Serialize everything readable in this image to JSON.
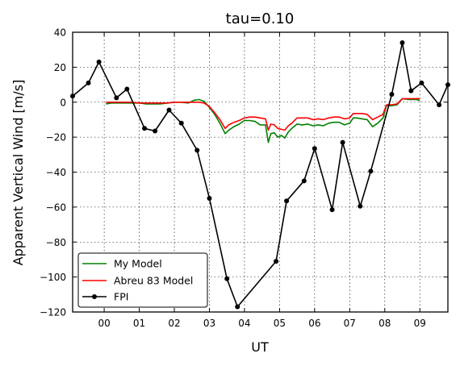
{
  "chart_data": {
    "type": "line",
    "title": "tau=0.10",
    "xlabel": "UT",
    "ylabel": "Apparent Vertical Wind [m/s]",
    "xlim": [
      -0.9,
      9.8
    ],
    "ylim": [
      -120,
      40
    ],
    "xticks": [
      0,
      1,
      2,
      3,
      4,
      5,
      6,
      7,
      8,
      9
    ],
    "xtick_labels": [
      "00",
      "01",
      "02",
      "03",
      "04",
      "05",
      "06",
      "07",
      "08",
      "09"
    ],
    "yticks": [
      -120,
      -100,
      -80,
      -60,
      -40,
      -20,
      0,
      20,
      40
    ],
    "ytick_labels": [
      "−120",
      "−100",
      "−80",
      "−60",
      "−40",
      "−20",
      "0",
      "20",
      "40"
    ],
    "grid": true,
    "legend_position": "lower-left",
    "series": [
      {
        "name": "My Model",
        "color": "#008000",
        "marker": "none",
        "x": [
          0.05,
          0.2,
          0.4,
          0.6,
          0.8,
          1.0,
          1.2,
          1.4,
          1.6,
          1.8,
          2.0,
          2.2,
          2.4,
          2.55,
          2.7,
          2.85,
          3.0,
          3.15,
          3.3,
          3.45,
          3.55,
          3.7,
          3.85,
          4.0,
          4.15,
          4.3,
          4.45,
          4.6,
          4.68,
          4.75,
          4.85,
          4.95,
          5.05,
          5.15,
          5.25,
          5.35,
          5.5,
          5.65,
          5.8,
          5.95,
          6.1,
          6.25,
          6.4,
          6.55,
          6.7,
          6.85,
          7.0,
          7.1,
          7.2,
          7.35,
          7.5,
          7.65,
          7.8,
          7.95,
          8.05,
          8.2,
          8.35,
          8.5,
          8.7,
          8.9,
          9.0
        ],
        "y": [
          -1,
          -0.5,
          -0.5,
          -0.5,
          -0.5,
          -0.5,
          -1,
          -1,
          -1,
          -0.5,
          0,
          0,
          -0.5,
          1,
          1.5,
          0.5,
          -3,
          -7,
          -12,
          -18,
          -16,
          -14,
          -12.5,
          -10.5,
          -10.5,
          -11,
          -13,
          -13,
          -23,
          -18,
          -17.5,
          -20,
          -19,
          -20.5,
          -17,
          -15,
          -12.5,
          -13,
          -12.5,
          -13.5,
          -13,
          -13.5,
          -12,
          -11.5,
          -11.5,
          -13,
          -12,
          -9,
          -9,
          -9.5,
          -10,
          -14,
          -12,
          -9,
          -2,
          -2,
          -1.5,
          2,
          1.5,
          1.5,
          1
        ]
      },
      {
        "name": "Abreu 83 Model",
        "color": "#ff0000",
        "marker": "none",
        "x": [
          0.05,
          0.2,
          0.4,
          0.6,
          0.8,
          1.0,
          1.2,
          1.4,
          1.6,
          1.8,
          2.0,
          2.2,
          2.4,
          2.55,
          2.7,
          2.85,
          3.0,
          3.15,
          3.3,
          3.45,
          3.55,
          3.7,
          3.85,
          4.0,
          4.15,
          4.3,
          4.45,
          4.6,
          4.68,
          4.75,
          4.85,
          4.95,
          5.05,
          5.15,
          5.25,
          5.35,
          5.5,
          5.65,
          5.8,
          5.95,
          6.1,
          6.25,
          6.4,
          6.55,
          6.7,
          6.85,
          7.0,
          7.1,
          7.2,
          7.35,
          7.5,
          7.65,
          7.8,
          7.95,
          8.05,
          8.2,
          8.35,
          8.5,
          8.7,
          8.9,
          9.0
        ],
        "y": [
          0,
          0,
          0,
          0,
          0,
          -0.5,
          -0.5,
          -0.5,
          -0.5,
          -0.5,
          0,
          0,
          0,
          0,
          0,
          -0.5,
          -2.5,
          -6,
          -10,
          -15,
          -13,
          -11.5,
          -10.5,
          -9,
          -8.5,
          -8.5,
          -9,
          -9.5,
          -16,
          -12.5,
          -13,
          -15,
          -15.5,
          -16,
          -13.5,
          -12,
          -9,
          -9,
          -9,
          -10,
          -9.5,
          -10,
          -9,
          -8.5,
          -8.5,
          -9.5,
          -9,
          -6.5,
          -6.5,
          -6.5,
          -7,
          -10,
          -8.5,
          -7,
          -1.5,
          -1.5,
          -1,
          2,
          2,
          2,
          2
        ]
      },
      {
        "name": "FPI",
        "color": "#000000",
        "marker": "circle",
        "x": [
          -0.9,
          -0.45,
          -0.15,
          0.35,
          0.65,
          1.15,
          1.45,
          1.85,
          2.2,
          2.65,
          3.0,
          3.5,
          3.8,
          4.9,
          5.2,
          5.7,
          6.0,
          6.5,
          6.8,
          7.3,
          7.6,
          8.2,
          8.5,
          8.75,
          9.05,
          9.55,
          9.8
        ],
        "y": [
          3.5,
          11,
          23,
          2.5,
          7.5,
          -15,
          -16.5,
          -4.5,
          -12,
          -27.5,
          -55,
          -101,
          -117,
          -91,
          -56.5,
          -45,
          -26.5,
          -61.5,
          -23,
          -59.5,
          -39.5,
          4.5,
          34,
          6.5,
          11,
          -1.5,
          10
        ]
      }
    ]
  }
}
